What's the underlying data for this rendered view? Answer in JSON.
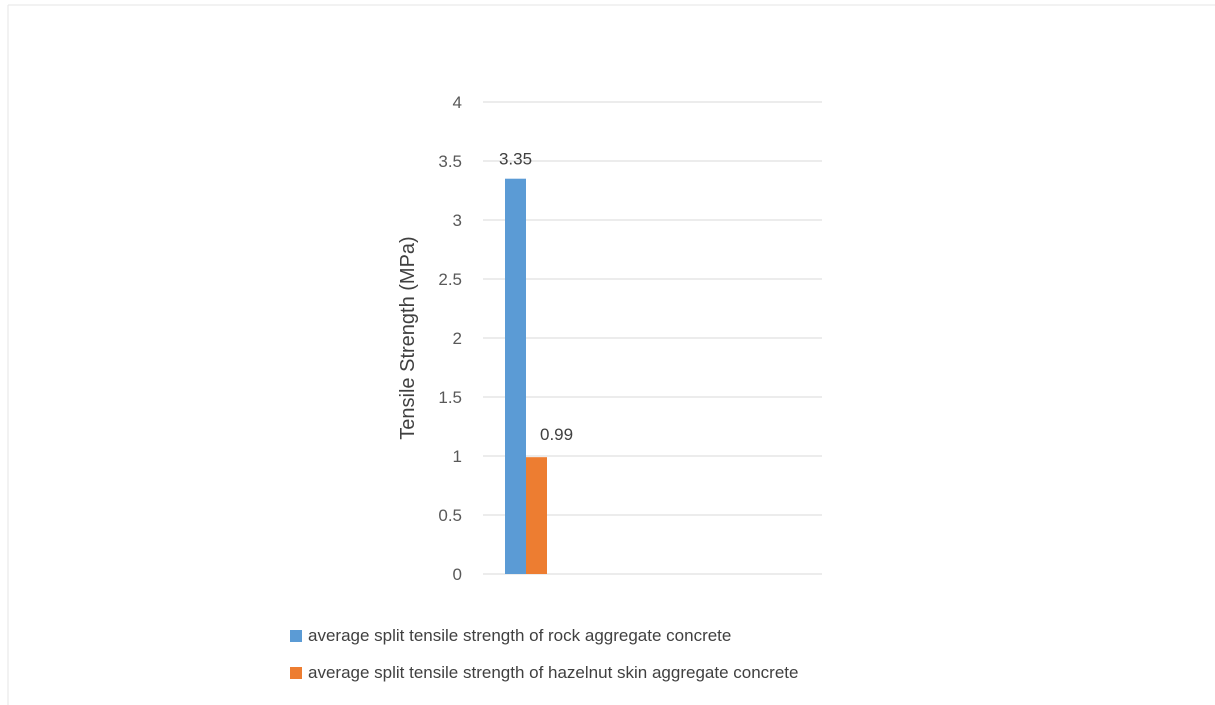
{
  "chart_data": {
    "type": "bar",
    "categories": [
      ""
    ],
    "series": [
      {
        "name": "average split tensile strength of rock aggregate concrete",
        "values": [
          3.35
        ],
        "color": "#5B9BD5"
      },
      {
        "name": "average split tensile strength of hazelnut skin aggregate concrete",
        "values": [
          0.99
        ],
        "color": "#ED7D31"
      }
    ],
    "title": "",
    "xlabel": "",
    "ylabel": "Tensile Strength (MPa)",
    "ylim": [
      0,
      4
    ],
    "yticks": [
      "0",
      "0.5",
      "1",
      "1.5",
      "2",
      "2.5",
      "3",
      "3.5",
      "4"
    ],
    "data_labels": [
      "3.35",
      "0.99"
    ],
    "grid": true,
    "legend_position": "bottom"
  }
}
